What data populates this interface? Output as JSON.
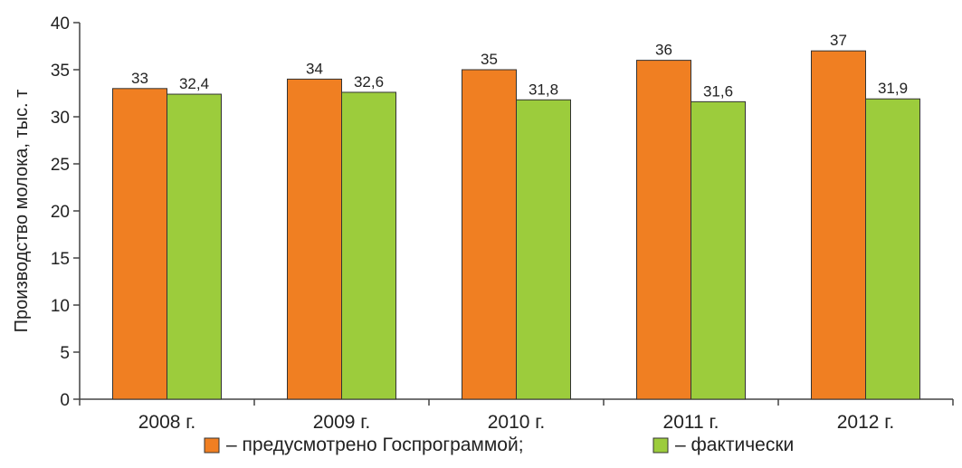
{
  "chart_data": {
    "type": "bar",
    "categories": [
      "2008 г.",
      "2009 г.",
      "2010 г.",
      "2011 г.",
      "2012 г."
    ],
    "series": [
      {
        "name": "– предусмотрено Госпрограммой;",
        "values": [
          33,
          34,
          35,
          36,
          37
        ],
        "labels": [
          "33",
          "34",
          "35",
          "36",
          "37"
        ],
        "color": "#f07f22"
      },
      {
        "name": "– фактически",
        "values": [
          32.4,
          32.6,
          31.8,
          31.6,
          31.9
        ],
        "labels": [
          "32,4",
          "32,6",
          "31,8",
          "31,6",
          "31,9"
        ],
        "color": "#9ccc3c"
      }
    ],
    "title": "",
    "xlabel": "",
    "ylabel": "Производство молока, тыс. т",
    "ylim": [
      0,
      40
    ],
    "yticks": [
      0,
      5,
      10,
      15,
      20,
      25,
      30,
      35,
      40
    ],
    "grid": false,
    "legend_position": "bottom"
  }
}
